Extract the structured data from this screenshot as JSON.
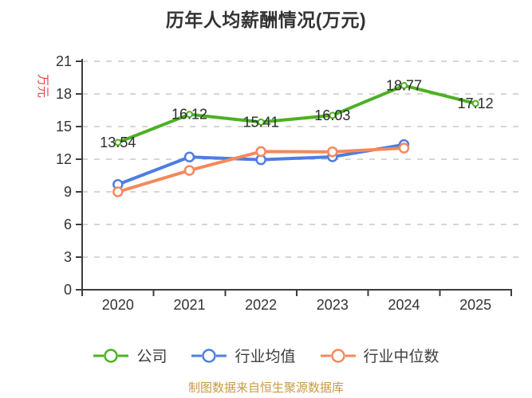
{
  "chart_data": {
    "type": "line",
    "title": "历年人均薪酬情况(万元)",
    "ylabel": "万元",
    "xlabel": "",
    "ylim": [
      0,
      21
    ],
    "yticks": [
      0,
      3,
      6,
      9,
      12,
      15,
      18,
      21
    ],
    "grid": "horizontal dashed",
    "legend_position": "bottom",
    "categories": [
      "2020",
      "2021",
      "2022",
      "2023",
      "2024",
      "2025"
    ],
    "series": [
      {
        "name": "公司",
        "color": "#4cb122",
        "values": [
          13.54,
          16.12,
          15.41,
          16.03,
          18.77,
          17.12
        ],
        "point_labels": [
          "13.54",
          "16.12",
          "15.41",
          "16.03",
          "18.77",
          "17.12"
        ],
        "labels_visible": true
      },
      {
        "name": "行业均值",
        "color": "#4e7de0",
        "values": [
          9.68,
          12.2,
          11.95,
          12.22,
          13.34,
          null
        ],
        "labels_visible": false
      },
      {
        "name": "行业中位数",
        "color": "#f5885c",
        "values": [
          9.0,
          10.97,
          12.7,
          12.68,
          13.02,
          null
        ],
        "labels_visible": false
      }
    ]
  },
  "footer": {
    "source_note": "制图数据来自恒生聚源数据库"
  },
  "colors": {
    "title": "#333333",
    "axis_line": "#3c3c3c",
    "tick_label": "#333333",
    "gridline": "#d6d6d6",
    "unit_label_red": "#f23c3c",
    "data_label": "#2b2b2b",
    "source_note_gold": "#c79b45",
    "background": "#ffffff"
  }
}
